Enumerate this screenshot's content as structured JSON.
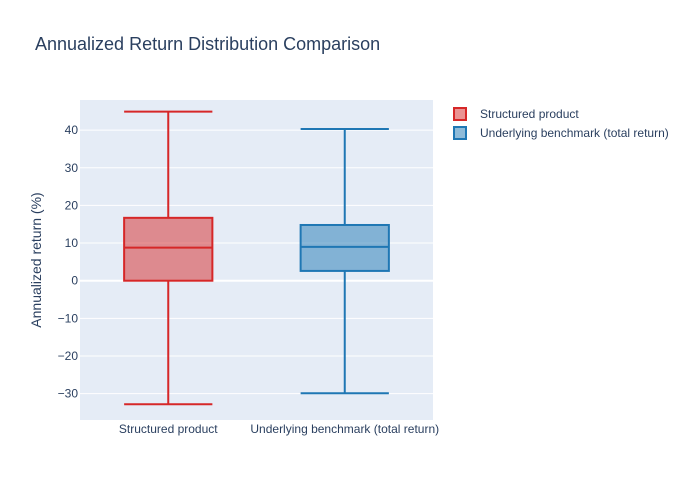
{
  "chart_data": {
    "type": "box",
    "title": "Annualized Return Distribution Comparison",
    "xlabel": "",
    "ylabel": "Annualized return (%)",
    "ylim": [
      -37,
      48
    ],
    "y_ticks": [
      -30,
      -20,
      -10,
      0,
      10,
      20,
      30,
      40
    ],
    "y_tick_labels": [
      "−30",
      "−20",
      "−10",
      "0",
      "10",
      "20",
      "30",
      "40"
    ],
    "grid": true,
    "legend_position": "top-right",
    "categories": [
      "Structured product",
      "Underlying benchmark (total return)"
    ],
    "series": [
      {
        "name": "Structured product",
        "color": "#d62728",
        "fill": "rgba(214,39,40,0.5)",
        "min": -32.8,
        "q1": 0,
        "median": 8.8,
        "q3": 16.7,
        "max": 44.9
      },
      {
        "name": "Underlying benchmark (total return)",
        "color": "#1f77b4",
        "fill": "rgba(31,119,180,0.5)",
        "min": -29.9,
        "q1": 2.6,
        "median": 9.0,
        "q3": 14.8,
        "max": 40.3
      }
    ]
  }
}
